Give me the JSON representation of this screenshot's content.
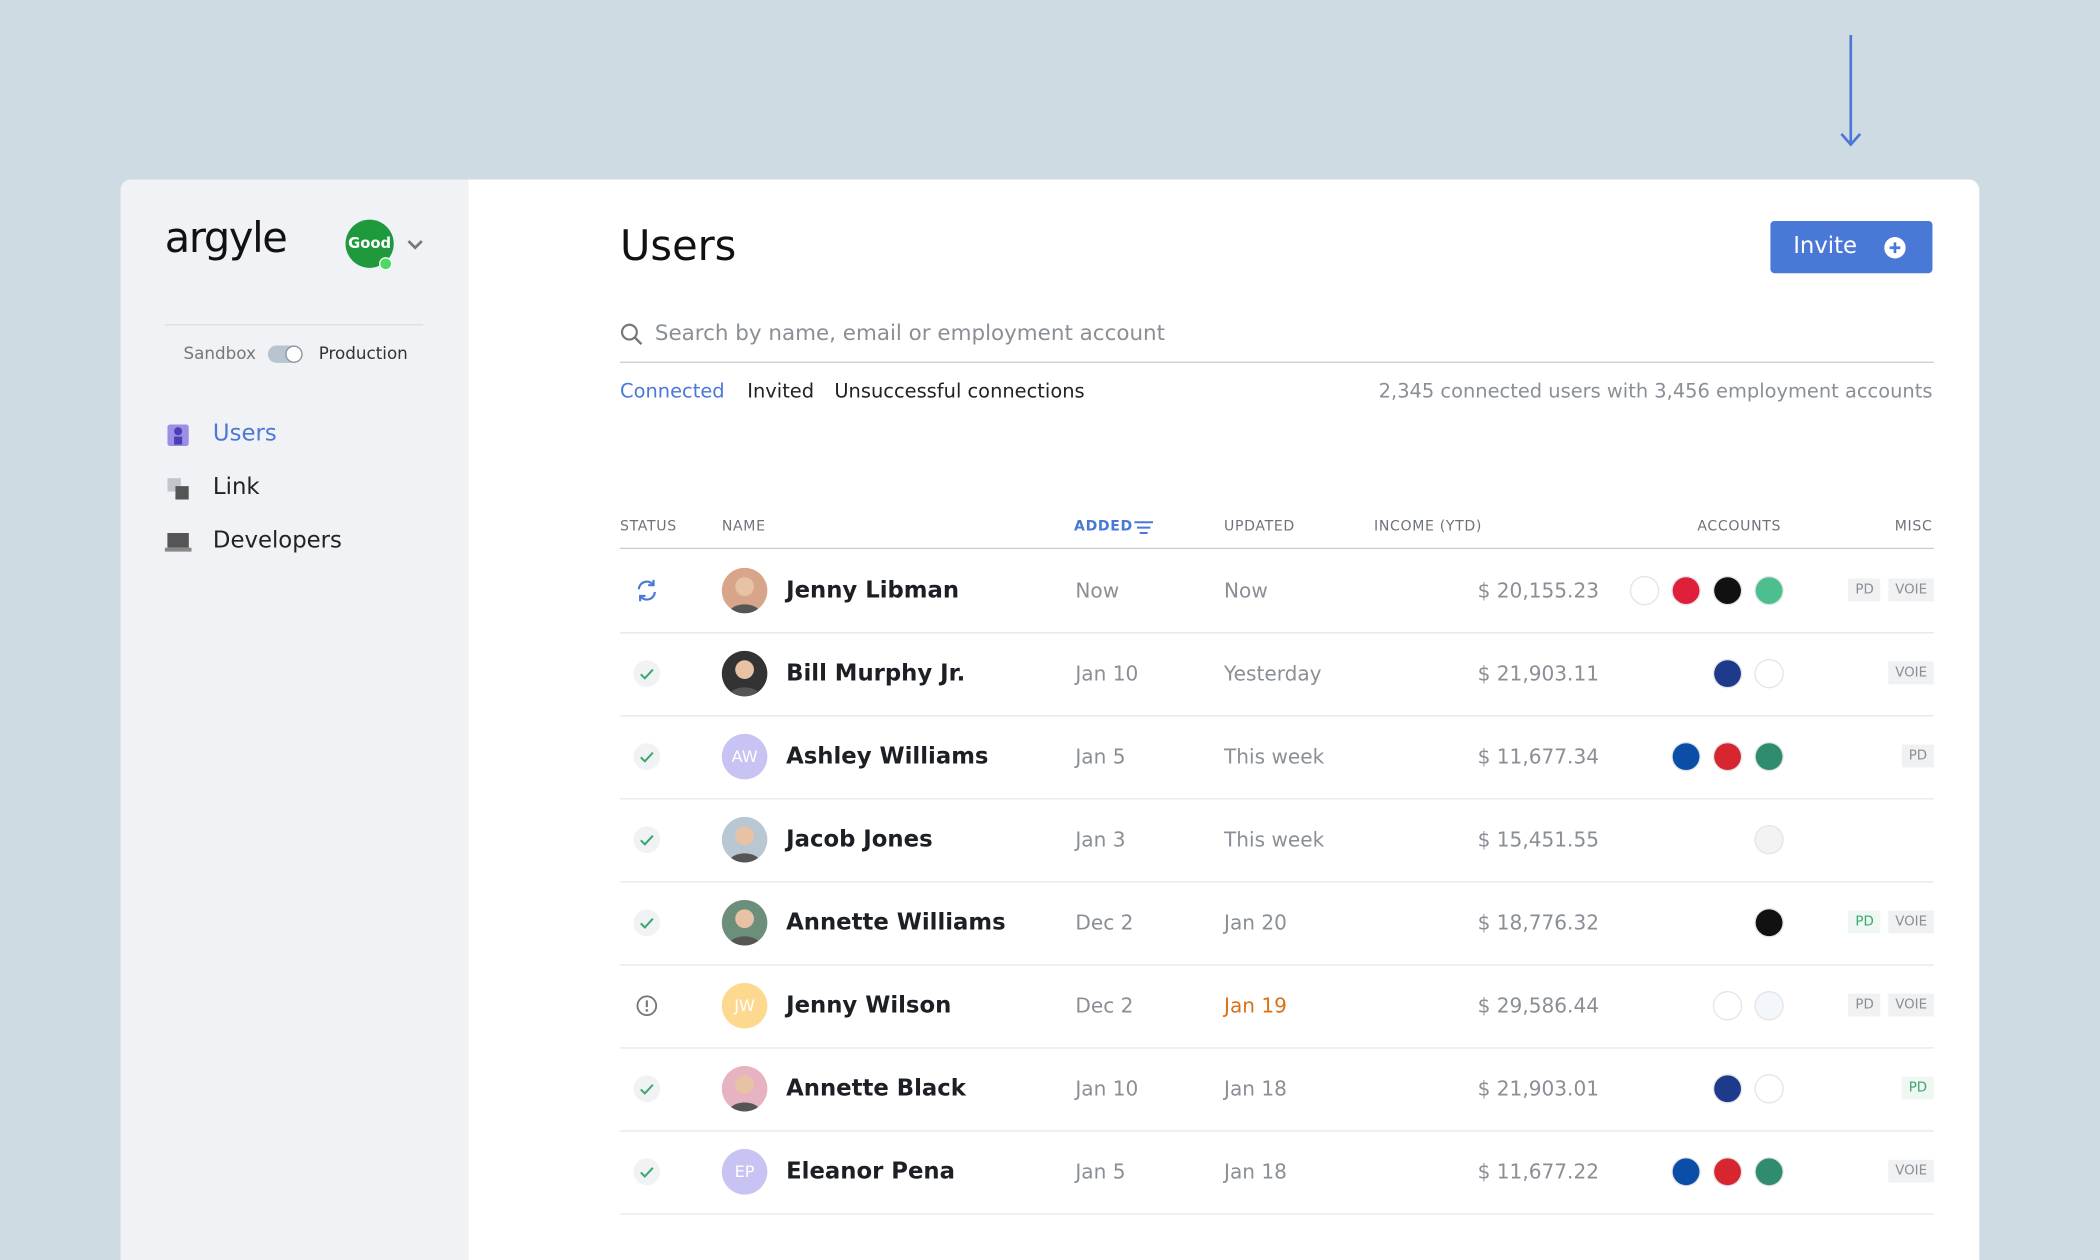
{
  "sidebar": {
    "brand": "argyle",
    "workspace": "Good",
    "env": {
      "left": "Sandbox",
      "right": "Production"
    },
    "nav": [
      "Users",
      "Link",
      "Developers"
    ]
  },
  "header": {
    "title": "Users",
    "button": "Invite",
    "search_placeholder": "Search by name, email or employment account",
    "tabs": [
      "Connected",
      "Invited",
      "Unsuccessful connections"
    ],
    "summary": "2,345 connected users with 3,456 employment accounts"
  },
  "table": {
    "columns": [
      "STATUS",
      "NAME",
      "ADDED",
      "UPDATED",
      "INCOME (YTD)",
      "ACCOUNTS",
      "MISC"
    ],
    "rows": [
      {
        "name": "Jenny Libman",
        "added": "Now",
        "updated": "Now",
        "income": "$ 20,155.23",
        "misc": [
          "PD",
          "VOIE"
        ]
      },
      {
        "name": "Bill Murphy Jr.",
        "added": "Jan 10",
        "updated": "Yesterday",
        "income": "$ 21,903.11",
        "misc": [
          "VOIE"
        ]
      },
      {
        "name": "Ashley Williams",
        "initials": "AW",
        "added": "Jan 5",
        "updated": "This week",
        "income": "$ 11,677.34",
        "misc": [
          "PD"
        ]
      },
      {
        "name": "Jacob Jones",
        "added": "Jan 3",
        "updated": "This week",
        "income": "$ 15,451.55",
        "misc": []
      },
      {
        "name": "Annette Williams",
        "added": "Dec 2",
        "updated": "Jan 20",
        "income": "$ 18,776.32",
        "misc": [
          "PD",
          "VOIE"
        ]
      },
      {
        "name": "Jenny Wilson",
        "initials": "JW",
        "added": "Dec 2",
        "updated": "Jan 19",
        "income": "$ 29,586.44",
        "misc": [
          "PD",
          "VOIE"
        ]
      },
      {
        "name": "Annette Black",
        "added": "Jan 10",
        "updated": "Jan 18",
        "income": "$ 21,903.01",
        "misc": [
          "PD"
        ]
      },
      {
        "name": "Eleanor Pena",
        "initials": "EP",
        "added": "Jan 5",
        "updated": "Jan 18",
        "income": "$ 11,677.22",
        "misc": [
          "VOIE"
        ]
      }
    ]
  }
}
